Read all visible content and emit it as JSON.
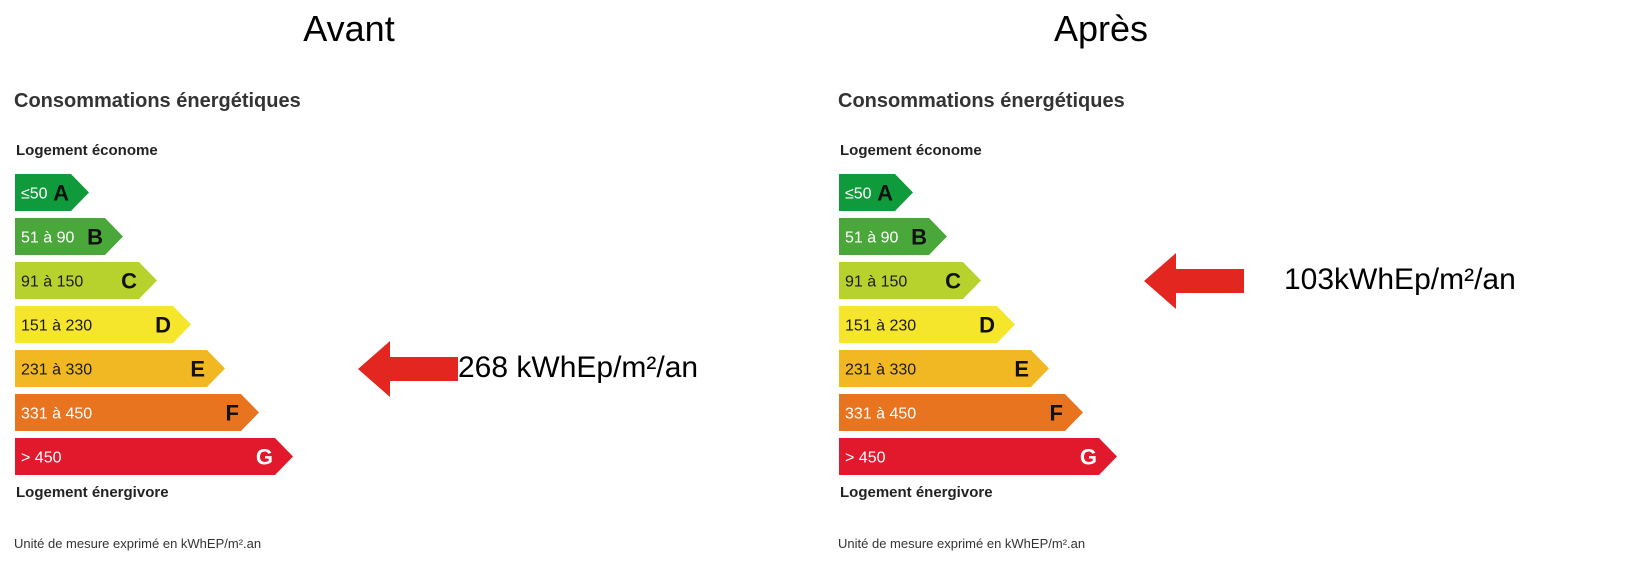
{
  "chart_data": [
    {
      "type": "bar",
      "heading": "Avant",
      "title": "Consommations énergétiques",
      "top_label": "Logement économe",
      "bottom_label": "Logement énergivore",
      "unit_note": "Unité de mesure exprimé en kWhEP/m².an",
      "classes": [
        {
          "range": "≤50",
          "letter": "A",
          "color": "#0f9a3c"
        },
        {
          "range": "51 à 90",
          "letter": "B",
          "color": "#4aa83a"
        },
        {
          "range": "91 à 150",
          "letter": "C",
          "color": "#b8d22d"
        },
        {
          "range": "151 à 230",
          "letter": "D",
          "color": "#f5e52b"
        },
        {
          "range": "231 à 330",
          "letter": "E",
          "color": "#f2b824"
        },
        {
          "range": "331 à 450",
          "letter": "F",
          "color": "#e8741f"
        },
        {
          "range": "> 450",
          "letter": "G",
          "color": "#e2182c"
        }
      ],
      "indicator": {
        "value_label": "268 kWhEp/m²/an",
        "class": "E",
        "color": "#e3261f"
      }
    },
    {
      "type": "bar",
      "heading": "Après",
      "title": "Consommations énergétiques",
      "top_label": "Logement économe",
      "bottom_label": "Logement énergivore",
      "unit_note": "Unité de mesure exprimé en kWhEP/m².an",
      "classes": [
        {
          "range": "≤50",
          "letter": "A",
          "color": "#0f9a3c"
        },
        {
          "range": "51 à 90",
          "letter": "B",
          "color": "#4aa83a"
        },
        {
          "range": "91 à 150",
          "letter": "C",
          "color": "#b8d22d"
        },
        {
          "range": "151 à 230",
          "letter": "D",
          "color": "#f5e52b"
        },
        {
          "range": "231 à 330",
          "letter": "E",
          "color": "#f2b824"
        },
        {
          "range": "331 à 450",
          "letter": "F",
          "color": "#e8741f"
        },
        {
          "range": "> 450",
          "letter": "G",
          "color": "#e2182c"
        }
      ],
      "indicator": {
        "value_label": "103kWhEp/m²/an",
        "class": "C",
        "color": "#e3261f"
      }
    }
  ]
}
